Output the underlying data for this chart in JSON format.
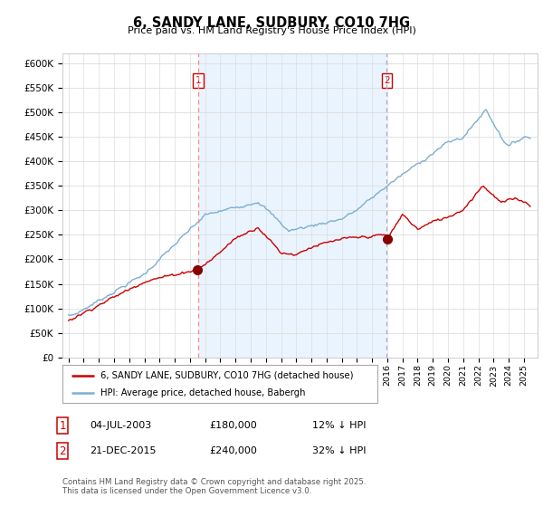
{
  "title": "6, SANDY LANE, SUDBURY, CO10 7HG",
  "subtitle": "Price paid vs. HM Land Registry's House Price Index (HPI)",
  "ylim": [
    0,
    620000
  ],
  "yticks": [
    0,
    50000,
    100000,
    150000,
    200000,
    250000,
    300000,
    350000,
    400000,
    450000,
    500000,
    550000,
    600000
  ],
  "ytick_labels": [
    "£0",
    "£50K",
    "£100K",
    "£150K",
    "£200K",
    "£250K",
    "£300K",
    "£350K",
    "£400K",
    "£450K",
    "£500K",
    "£550K",
    "£600K"
  ],
  "hpi_color": "#7bafd4",
  "hpi_fill_color": "#ddeeff",
  "price_color": "#CC0000",
  "vline1_color": "#FF8888",
  "vline2_color": "#aaaacc",
  "marker1_date_x": 2003.54,
  "marker2_date_x": 2015.97,
  "legend_entries": [
    "6, SANDY LANE, SUDBURY, CO10 7HG (detached house)",
    "HPI: Average price, detached house, Babergh"
  ],
  "annotation1": [
    "1",
    "04-JUL-2003",
    "£180,000",
    "12% ↓ HPI"
  ],
  "annotation2": [
    "2",
    "21-DEC-2015",
    "£240,000",
    "32% ↓ HPI"
  ],
  "footnote": "Contains HM Land Registry data © Crown copyright and database right 2025.\nThis data is licensed under the Open Government Licence v3.0.",
  "background_color": "#ffffff",
  "grid_color": "#dddddd",
  "xlim_left": 1994.6,
  "xlim_right": 2025.9
}
